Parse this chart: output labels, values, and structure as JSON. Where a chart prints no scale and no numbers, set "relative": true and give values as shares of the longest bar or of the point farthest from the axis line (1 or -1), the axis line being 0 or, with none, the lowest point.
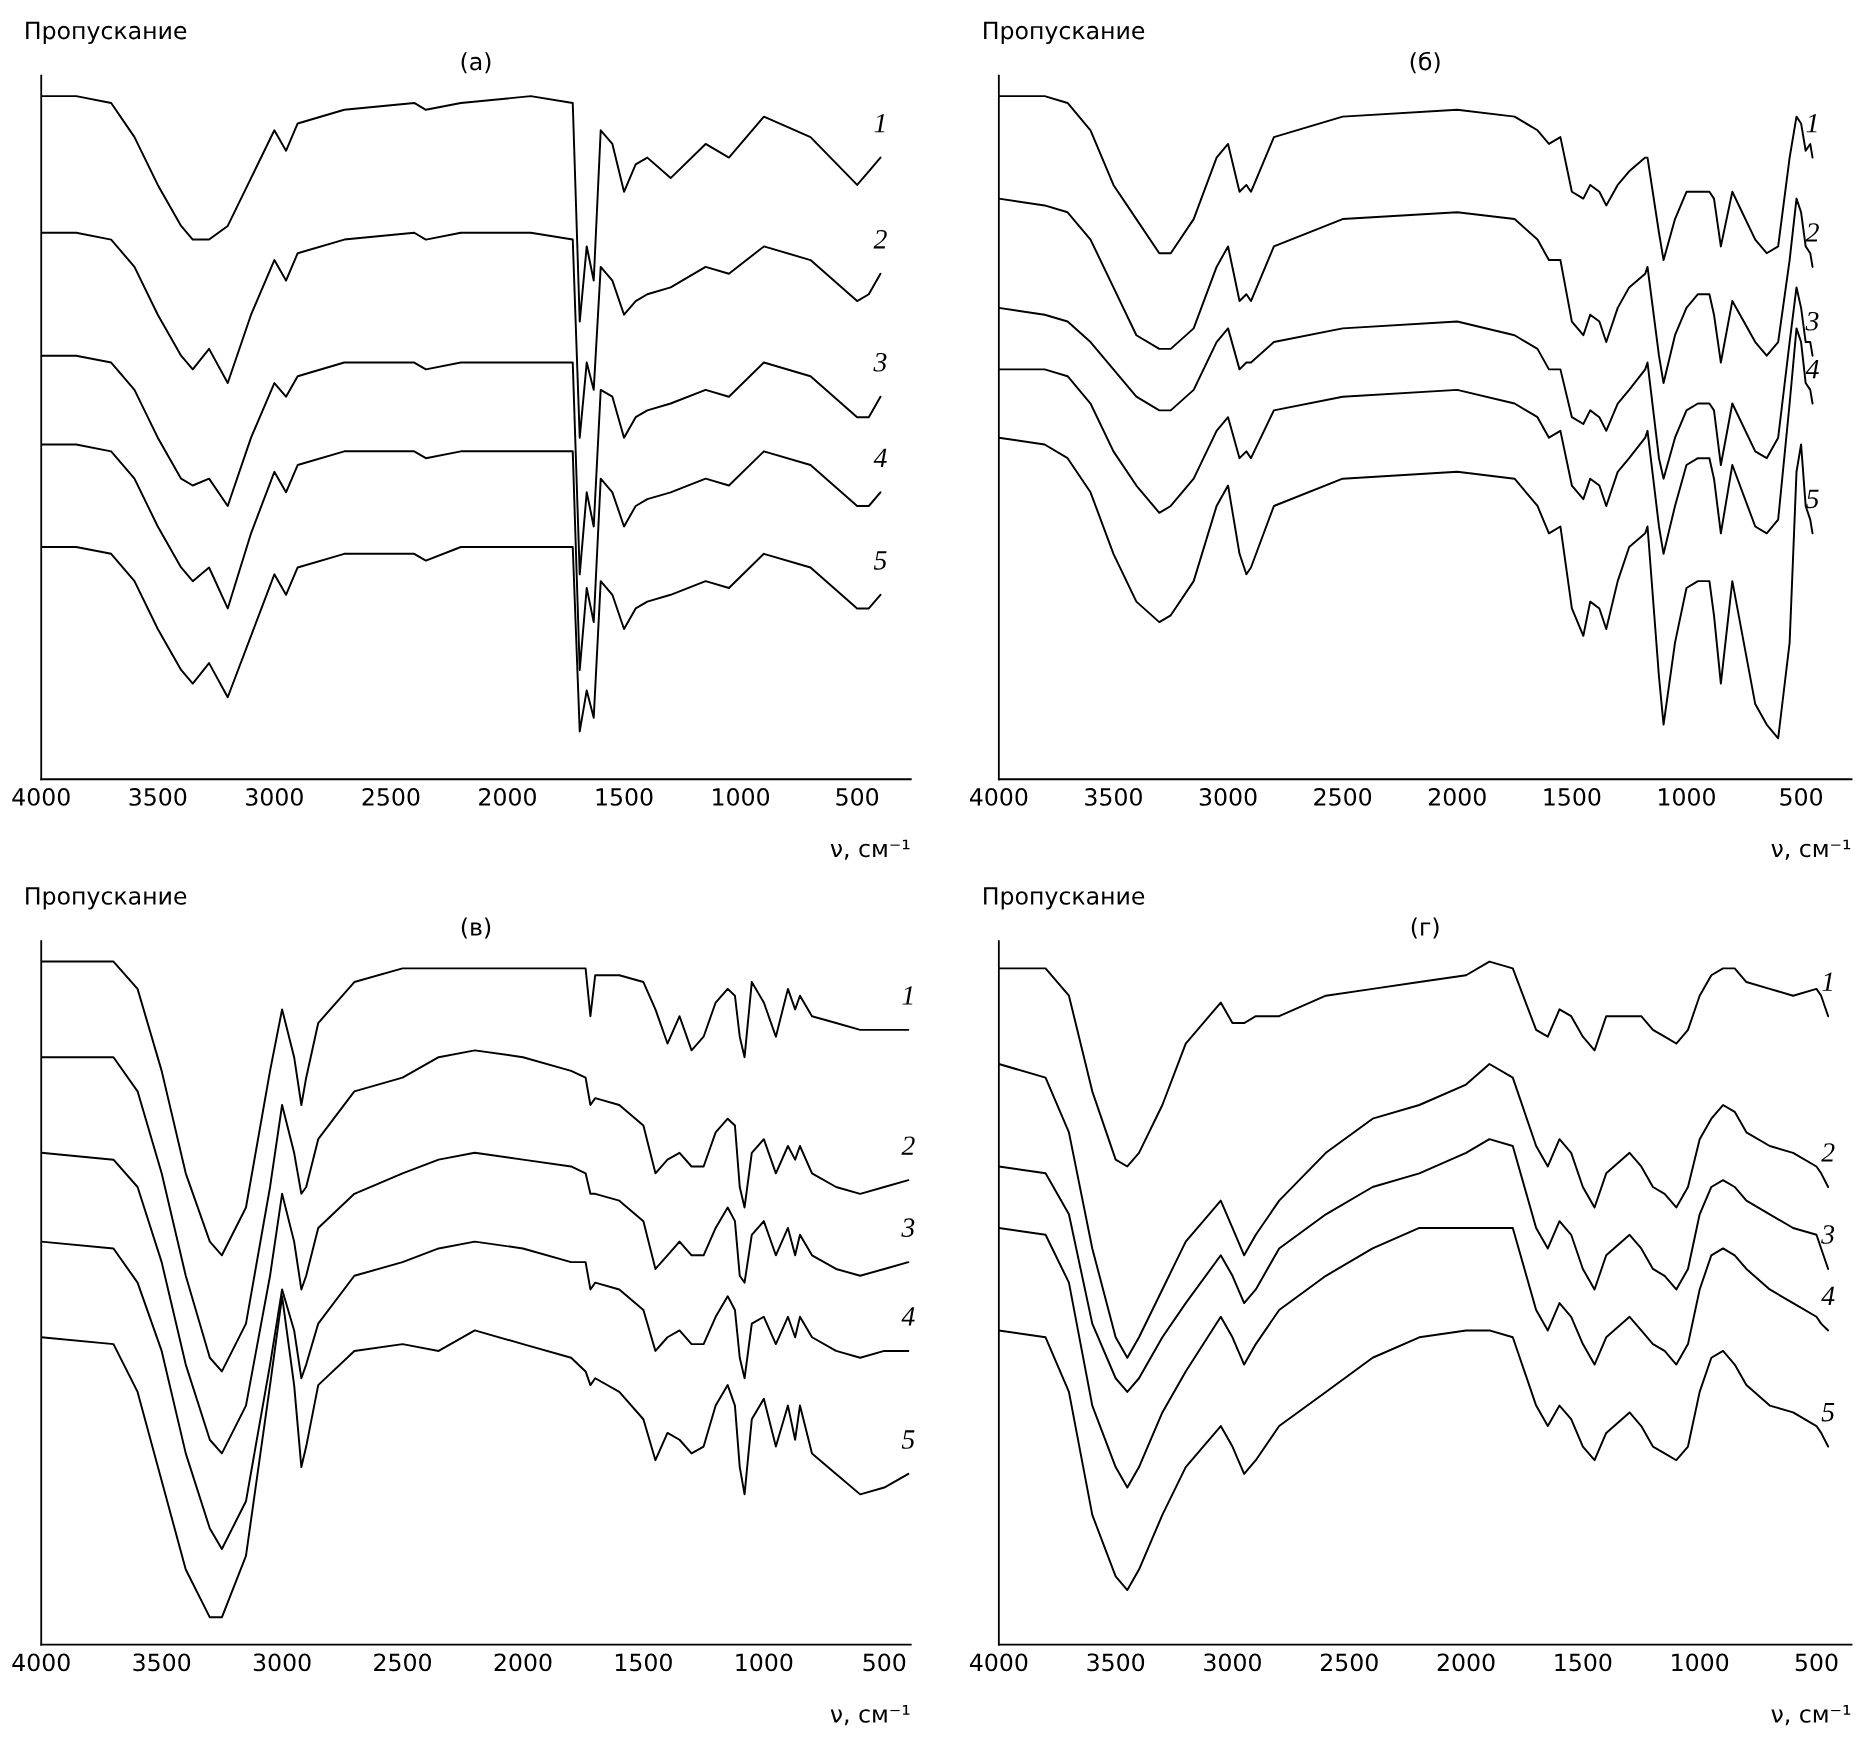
{
  "chart_data": [
    {
      "type": "line",
      "title": "(а)",
      "ylabel": "Пропускание",
      "xlabel": "ν, см⁻¹",
      "relative": true,
      "xlim": [
        4000,
        270
      ],
      "xticks": [
        4000,
        3500,
        3000,
        2500,
        2000,
        1500,
        1000,
        500
      ],
      "x": [
        4000,
        3850,
        3700,
        3600,
        3500,
        3400,
        3350,
        3280,
        3200,
        3100,
        3000,
        2950,
        2900,
        2700,
        2400,
        2350,
        2200,
        1900,
        1720,
        1690,
        1660,
        1630,
        1600,
        1550,
        1500,
        1450,
        1400,
        1300,
        1150,
        1050,
        900,
        700,
        500,
        450,
        400
      ],
      "series": [
        {
          "name": "1",
          "color": "#000000",
          "values": [
            1.0,
            1.0,
            0.99,
            0.94,
            0.87,
            0.81,
            0.79,
            0.79,
            0.81,
            0.88,
            0.95,
            0.92,
            0.96,
            0.98,
            0.99,
            0.98,
            0.99,
            1.0,
            0.99,
            0.67,
            0.78,
            0.73,
            0.95,
            0.93,
            0.86,
            0.9,
            0.91,
            0.88,
            0.93,
            0.91,
            0.97,
            0.94,
            0.87,
            0.89,
            0.91
          ]
        },
        {
          "name": "2",
          "color": "#000000",
          "values": [
            0.8,
            0.8,
            0.79,
            0.75,
            0.68,
            0.62,
            0.6,
            0.63,
            0.58,
            0.68,
            0.76,
            0.73,
            0.77,
            0.79,
            0.8,
            0.79,
            0.8,
            0.8,
            0.79,
            0.5,
            0.61,
            0.57,
            0.75,
            0.73,
            0.68,
            0.7,
            0.71,
            0.72,
            0.75,
            0.74,
            0.78,
            0.76,
            0.7,
            0.71,
            0.74
          ]
        },
        {
          "name": "3",
          "color": "#000000",
          "values": [
            0.62,
            0.62,
            0.61,
            0.57,
            0.5,
            0.44,
            0.43,
            0.44,
            0.4,
            0.5,
            0.58,
            0.56,
            0.59,
            0.61,
            0.61,
            0.6,
            0.61,
            0.61,
            0.61,
            0.3,
            0.42,
            0.37,
            0.57,
            0.56,
            0.5,
            0.53,
            0.54,
            0.55,
            0.57,
            0.56,
            0.61,
            0.59,
            0.53,
            0.53,
            0.56
          ]
        },
        {
          "name": "4",
          "color": "#000000",
          "values": [
            0.49,
            0.49,
            0.48,
            0.44,
            0.37,
            0.31,
            0.29,
            0.31,
            0.25,
            0.36,
            0.45,
            0.42,
            0.46,
            0.48,
            0.48,
            0.47,
            0.48,
            0.48,
            0.48,
            0.16,
            0.28,
            0.23,
            0.44,
            0.42,
            0.37,
            0.4,
            0.41,
            0.42,
            0.44,
            0.43,
            0.48,
            0.46,
            0.4,
            0.4,
            0.42
          ]
        },
        {
          "name": "5",
          "color": "#000000",
          "values": [
            0.34,
            0.34,
            0.33,
            0.29,
            0.22,
            0.16,
            0.14,
            0.17,
            0.12,
            0.21,
            0.3,
            0.27,
            0.31,
            0.33,
            0.33,
            0.32,
            0.34,
            0.34,
            0.34,
            0.07,
            0.13,
            0.09,
            0.29,
            0.27,
            0.22,
            0.25,
            0.26,
            0.27,
            0.29,
            0.28,
            0.33,
            0.31,
            0.25,
            0.25,
            0.27
          ]
        }
      ]
    },
    {
      "type": "line",
      "title": "(б)",
      "ylabel": "Пропускание",
      "xlabel": "ν, см⁻¹",
      "relative": true,
      "xlim": [
        4000,
        280
      ],
      "xticks": [
        4000,
        3500,
        3000,
        2500,
        2000,
        1500,
        1000,
        500
      ],
      "x": [
        4000,
        3800,
        3700,
        3600,
        3500,
        3400,
        3300,
        3250,
        3150,
        3050,
        3000,
        2950,
        2920,
        2900,
        2800,
        2500,
        2000,
        1750,
        1650,
        1600,
        1550,
        1500,
        1450,
        1420,
        1380,
        1350,
        1300,
        1250,
        1180,
        1170,
        1120,
        1100,
        1050,
        1000,
        950,
        900,
        880,
        850,
        800,
        700,
        650,
        600,
        550,
        520,
        500,
        480,
        460,
        450
      ],
      "series": [
        {
          "name": "1",
          "color": "#000000",
          "values": [
            1.0,
            1.0,
            0.99,
            0.95,
            0.87,
            0.82,
            0.77,
            0.77,
            0.82,
            0.91,
            0.93,
            0.86,
            0.87,
            0.86,
            0.94,
            0.97,
            0.98,
            0.97,
            0.95,
            0.93,
            0.94,
            0.86,
            0.85,
            0.87,
            0.86,
            0.84,
            0.87,
            0.89,
            0.91,
            0.91,
            0.8,
            0.76,
            0.82,
            0.86,
            0.86,
            0.86,
            0.85,
            0.78,
            0.86,
            0.79,
            0.77,
            0.78,
            0.91,
            0.97,
            0.96,
            0.92,
            0.93,
            0.91
          ]
        },
        {
          "name": "2",
          "color": "#000000",
          "values": [
            0.85,
            0.84,
            0.83,
            0.79,
            0.72,
            0.65,
            0.63,
            0.63,
            0.66,
            0.75,
            0.78,
            0.7,
            0.71,
            0.7,
            0.78,
            0.82,
            0.83,
            0.82,
            0.79,
            0.76,
            0.76,
            0.67,
            0.65,
            0.68,
            0.67,
            0.64,
            0.69,
            0.72,
            0.74,
            0.75,
            0.62,
            0.58,
            0.65,
            0.69,
            0.71,
            0.71,
            0.68,
            0.61,
            0.7,
            0.64,
            0.62,
            0.64,
            0.76,
            0.85,
            0.83,
            0.78,
            0.77,
            0.75
          ]
        },
        {
          "name": "3",
          "color": "#000000",
          "values": [
            0.69,
            0.68,
            0.67,
            0.64,
            0.6,
            0.56,
            0.54,
            0.54,
            0.57,
            0.64,
            0.66,
            0.6,
            0.61,
            0.61,
            0.64,
            0.66,
            0.67,
            0.65,
            0.63,
            0.6,
            0.6,
            0.53,
            0.52,
            0.54,
            0.53,
            0.51,
            0.55,
            0.57,
            0.6,
            0.61,
            0.47,
            0.44,
            0.5,
            0.54,
            0.55,
            0.55,
            0.54,
            0.46,
            0.55,
            0.48,
            0.47,
            0.5,
            0.64,
            0.72,
            0.69,
            0.64,
            0.64,
            0.62
          ]
        },
        {
          "name": "4",
          "color": "#000000",
          "values": [
            0.6,
            0.6,
            0.59,
            0.55,
            0.48,
            0.43,
            0.39,
            0.4,
            0.44,
            0.51,
            0.53,
            0.47,
            0.48,
            0.47,
            0.54,
            0.56,
            0.57,
            0.55,
            0.53,
            0.5,
            0.51,
            0.43,
            0.41,
            0.44,
            0.43,
            0.4,
            0.45,
            0.47,
            0.5,
            0.51,
            0.37,
            0.33,
            0.4,
            0.46,
            0.47,
            0.47,
            0.44,
            0.36,
            0.46,
            0.37,
            0.36,
            0.38,
            0.55,
            0.66,
            0.64,
            0.58,
            0.57,
            0.55
          ]
        },
        {
          "name": "5",
          "color": "#000000",
          "values": [
            0.5,
            0.49,
            0.47,
            0.42,
            0.33,
            0.26,
            0.23,
            0.24,
            0.29,
            0.4,
            0.43,
            0.33,
            0.3,
            0.31,
            0.4,
            0.44,
            0.45,
            0.44,
            0.4,
            0.36,
            0.37,
            0.25,
            0.21,
            0.26,
            0.25,
            0.22,
            0.29,
            0.34,
            0.36,
            0.37,
            0.15,
            0.08,
            0.2,
            0.28,
            0.29,
            0.29,
            0.24,
            0.14,
            0.29,
            0.11,
            0.08,
            0.06,
            0.2,
            0.45,
            0.49,
            0.4,
            0.38,
            0.36
          ]
        }
      ]
    },
    {
      "type": "line",
      "title": "(в)",
      "ylabel": "Пропускание",
      "xlabel": "ν, см⁻¹",
      "relative": true,
      "xlim": [
        4000,
        390
      ],
      "xticks": [
        4000,
        3500,
        3000,
        2500,
        2000,
        1500,
        1000,
        500
      ],
      "x": [
        4000,
        3700,
        3600,
        3500,
        3400,
        3300,
        3250,
        3150,
        3050,
        3000,
        2950,
        2920,
        2900,
        2850,
        2700,
        2500,
        2350,
        2200,
        2000,
        1800,
        1740,
        1720,
        1700,
        1600,
        1500,
        1450,
        1400,
        1350,
        1300,
        1250,
        1200,
        1150,
        1120,
        1100,
        1080,
        1050,
        1000,
        950,
        900,
        870,
        850,
        800,
        700,
        600,
        500,
        400
      ],
      "series": [
        {
          "name": "1",
          "color": "#000000",
          "values": [
            1.0,
            1.0,
            0.96,
            0.84,
            0.69,
            0.59,
            0.57,
            0.64,
            0.84,
            0.93,
            0.86,
            0.79,
            0.83,
            0.91,
            0.97,
            0.99,
            0.99,
            0.99,
            0.99,
            0.99,
            0.99,
            0.92,
            0.98,
            0.98,
            0.97,
            0.93,
            0.88,
            0.92,
            0.87,
            0.89,
            0.94,
            0.96,
            0.95,
            0.89,
            0.86,
            0.97,
            0.94,
            0.89,
            0.96,
            0.93,
            0.95,
            0.92,
            0.91,
            0.9,
            0.9,
            0.9
          ]
        },
        {
          "name": "2",
          "color": "#000000",
          "values": [
            0.86,
            0.86,
            0.81,
            0.69,
            0.54,
            0.42,
            0.4,
            0.47,
            0.67,
            0.79,
            0.72,
            0.66,
            0.67,
            0.74,
            0.81,
            0.83,
            0.86,
            0.87,
            0.86,
            0.84,
            0.83,
            0.79,
            0.8,
            0.79,
            0.76,
            0.69,
            0.71,
            0.72,
            0.7,
            0.7,
            0.75,
            0.77,
            0.76,
            0.67,
            0.64,
            0.72,
            0.74,
            0.69,
            0.73,
            0.71,
            0.73,
            0.69,
            0.67,
            0.66,
            0.67,
            0.68
          ]
        },
        {
          "name": "3",
          "color": "#000000",
          "values": [
            0.72,
            0.71,
            0.67,
            0.56,
            0.41,
            0.3,
            0.28,
            0.35,
            0.54,
            0.66,
            0.59,
            0.52,
            0.54,
            0.61,
            0.66,
            0.69,
            0.71,
            0.72,
            0.71,
            0.7,
            0.69,
            0.66,
            0.66,
            0.65,
            0.62,
            0.55,
            0.57,
            0.59,
            0.57,
            0.57,
            0.61,
            0.64,
            0.62,
            0.54,
            0.53,
            0.6,
            0.62,
            0.57,
            0.61,
            0.57,
            0.6,
            0.57,
            0.55,
            0.54,
            0.55,
            0.56
          ]
        },
        {
          "name": "4",
          "color": "#000000",
          "values": [
            0.59,
            0.58,
            0.53,
            0.43,
            0.28,
            0.17,
            0.14,
            0.21,
            0.41,
            0.52,
            0.46,
            0.39,
            0.41,
            0.47,
            0.54,
            0.56,
            0.58,
            0.59,
            0.58,
            0.56,
            0.56,
            0.52,
            0.53,
            0.52,
            0.49,
            0.43,
            0.45,
            0.46,
            0.44,
            0.44,
            0.48,
            0.51,
            0.49,
            0.42,
            0.39,
            0.47,
            0.48,
            0.44,
            0.48,
            0.45,
            0.48,
            0.45,
            0.43,
            0.42,
            0.43,
            0.43
          ]
        },
        {
          "name": "5",
          "color": "#000000",
          "values": [
            0.45,
            0.44,
            0.37,
            0.24,
            0.11,
            0.04,
            0.04,
            0.13,
            0.38,
            0.51,
            0.38,
            0.26,
            0.29,
            0.38,
            0.43,
            0.44,
            0.43,
            0.46,
            0.44,
            0.42,
            0.4,
            0.38,
            0.39,
            0.37,
            0.33,
            0.27,
            0.31,
            0.3,
            0.28,
            0.29,
            0.35,
            0.38,
            0.35,
            0.26,
            0.22,
            0.33,
            0.36,
            0.29,
            0.35,
            0.3,
            0.35,
            0.28,
            0.25,
            0.22,
            0.23,
            0.25
          ]
        }
      ]
    },
    {
      "type": "line",
      "title": "(г)",
      "ylabel": "Пропускание",
      "xlabel": "ν, см⁻¹",
      "relative": true,
      "xlim": [
        4000,
        350
      ],
      "xticks": [
        4000,
        3500,
        3000,
        2500,
        2000,
        1500,
        1000,
        500
      ],
      "x": [
        4000,
        3800,
        3700,
        3600,
        3500,
        3450,
        3400,
        3300,
        3200,
        3050,
        3000,
        2950,
        2900,
        2800,
        2600,
        2400,
        2200,
        2000,
        1900,
        1800,
        1700,
        1650,
        1600,
        1550,
        1500,
        1450,
        1400,
        1300,
        1250,
        1200,
        1150,
        1100,
        1050,
        1000,
        950,
        900,
        850,
        800,
        700,
        600,
        500,
        480,
        450
      ],
      "series": [
        {
          "name": "1",
          "color": "#000000",
          "values": [
            0.99,
            0.99,
            0.95,
            0.81,
            0.71,
            0.7,
            0.72,
            0.79,
            0.88,
            0.94,
            0.91,
            0.91,
            0.92,
            0.92,
            0.95,
            0.96,
            0.97,
            0.98,
            1.0,
            0.99,
            0.9,
            0.89,
            0.93,
            0.92,
            0.89,
            0.87,
            0.92,
            0.92,
            0.92,
            0.9,
            0.89,
            0.88,
            0.9,
            0.95,
            0.98,
            0.99,
            0.99,
            0.97,
            0.96,
            0.95,
            0.96,
            0.95,
            0.92
          ]
        },
        {
          "name": "2",
          "color": "#000000",
          "values": [
            0.85,
            0.83,
            0.75,
            0.58,
            0.45,
            0.42,
            0.45,
            0.52,
            0.59,
            0.65,
            0.61,
            0.57,
            0.6,
            0.65,
            0.72,
            0.77,
            0.79,
            0.82,
            0.85,
            0.83,
            0.73,
            0.7,
            0.74,
            0.72,
            0.67,
            0.64,
            0.69,
            0.72,
            0.7,
            0.67,
            0.66,
            0.64,
            0.67,
            0.74,
            0.77,
            0.79,
            0.78,
            0.75,
            0.73,
            0.72,
            0.7,
            0.69,
            0.67
          ]
        },
        {
          "name": "3",
          "color": "#000000",
          "values": [
            0.7,
            0.69,
            0.63,
            0.47,
            0.39,
            0.37,
            0.39,
            0.45,
            0.5,
            0.57,
            0.54,
            0.5,
            0.52,
            0.58,
            0.63,
            0.67,
            0.69,
            0.72,
            0.74,
            0.73,
            0.61,
            0.58,
            0.62,
            0.6,
            0.55,
            0.52,
            0.57,
            0.6,
            0.58,
            0.55,
            0.54,
            0.52,
            0.55,
            0.63,
            0.67,
            0.68,
            0.67,
            0.65,
            0.63,
            0.61,
            0.6,
            0.58,
            0.55
          ]
        },
        {
          "name": "4",
          "color": "#000000",
          "values": [
            0.61,
            0.6,
            0.53,
            0.35,
            0.26,
            0.23,
            0.26,
            0.34,
            0.4,
            0.48,
            0.45,
            0.41,
            0.44,
            0.49,
            0.54,
            0.58,
            0.61,
            0.61,
            0.61,
            0.61,
            0.49,
            0.46,
            0.5,
            0.48,
            0.44,
            0.41,
            0.45,
            0.48,
            0.46,
            0.44,
            0.43,
            0.41,
            0.44,
            0.52,
            0.57,
            0.58,
            0.57,
            0.55,
            0.52,
            0.5,
            0.48,
            0.47,
            0.46
          ]
        },
        {
          "name": "5",
          "color": "#000000",
          "values": [
            0.46,
            0.45,
            0.37,
            0.19,
            0.1,
            0.08,
            0.11,
            0.19,
            0.26,
            0.32,
            0.29,
            0.25,
            0.27,
            0.32,
            0.37,
            0.42,
            0.45,
            0.46,
            0.46,
            0.45,
            0.35,
            0.32,
            0.35,
            0.33,
            0.29,
            0.27,
            0.31,
            0.34,
            0.32,
            0.29,
            0.28,
            0.27,
            0.29,
            0.37,
            0.42,
            0.43,
            0.41,
            0.38,
            0.35,
            0.34,
            0.32,
            0.31,
            0.29
          ]
        }
      ]
    }
  ]
}
